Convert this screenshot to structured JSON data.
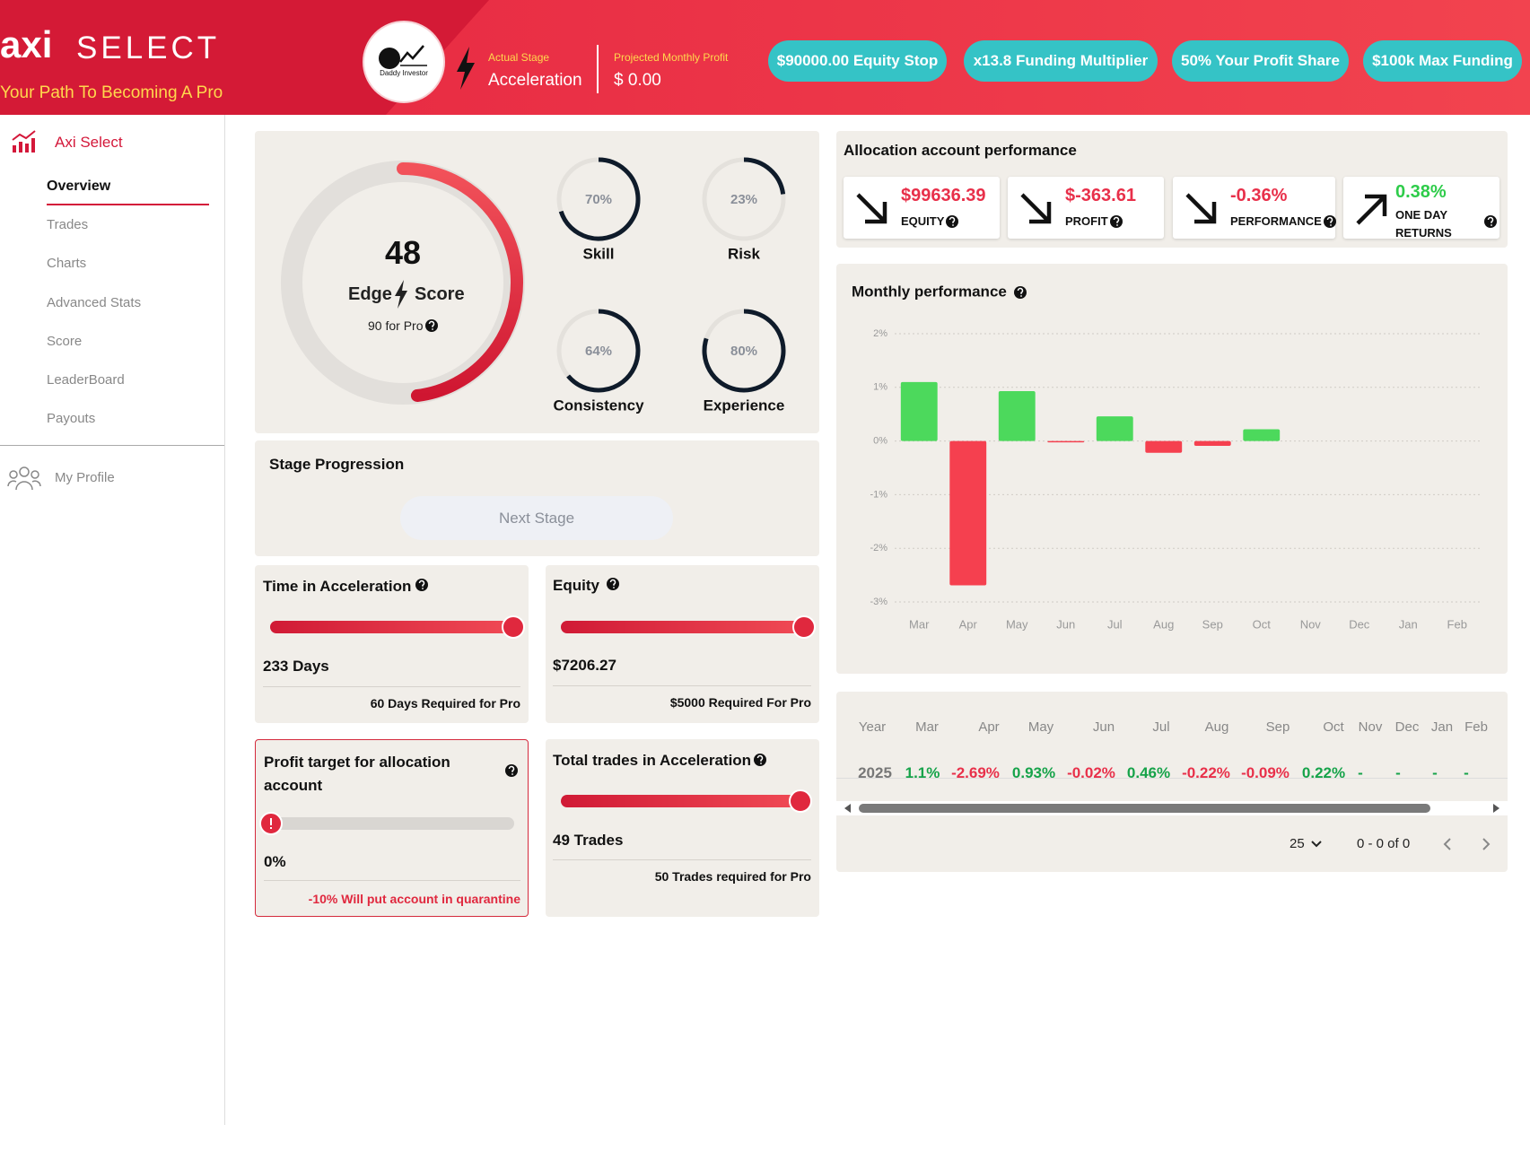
{
  "header": {
    "logo": "axi",
    "brand": "SELECT",
    "tagline": "Your Path To Becoming A Pro",
    "avatar_label": "Daddy Investor",
    "stage_label": "Actual Stage",
    "stage": "Acceleration",
    "profit_label": "Projected Monthly Profit",
    "profit": "$ 0.00",
    "pills": [
      "$90000.00 Equity Stop",
      "x13.8 Funding Multiplier",
      "50% Your Profit Share",
      "$100k Max Funding"
    ]
  },
  "sidebar": {
    "brand": "Axi Select",
    "nav": [
      "Overview",
      "Trades",
      "Charts",
      "Advanced Stats",
      "Score",
      "LeaderBoard",
      "Payouts"
    ],
    "profile": "My Profile"
  },
  "edge": {
    "score": 48,
    "lim": [
      0,
      100
    ],
    "word1": "Edge",
    "word2": "Score",
    "target": "90 for Pro"
  },
  "gauges": [
    {
      "name": "Skill",
      "value": 70,
      "value_label": "70%"
    },
    {
      "name": "Risk",
      "value": 23,
      "value_label": "23%"
    },
    {
      "name": "Consistency",
      "value": 64,
      "value_label": "64%"
    },
    {
      "name": "Experience",
      "value": 80,
      "value_label": "80%"
    }
  ],
  "stage_progression": {
    "title": "Stage Progression",
    "button": "Next Stage"
  },
  "cards": [
    {
      "title": "Time in Acceleration",
      "value": "233 Days",
      "note": "60 Days Required for Pro"
    },
    {
      "title": "Equity",
      "value": "$7206.27",
      "note": "$5000 Required For Pro"
    },
    {
      "title": "Profit target for allocation account",
      "value": "0%",
      "note": "-10% Will put account in quarantine"
    },
    {
      "title": "Total trades in Acceleration",
      "value": "49 Trades",
      "note": "50 Trades required for Pro"
    }
  ],
  "allocation": {
    "title": "Allocation account performance",
    "tiles": [
      {
        "value": "$99636.39",
        "label": "EQUITY"
      },
      {
        "value": "$-363.61",
        "label": "PROFIT"
      },
      {
        "value": "-0.36%",
        "label": "PERFORMANCE"
      },
      {
        "value": "0.38%",
        "label": "ONE DAY RETURNS"
      }
    ]
  },
  "chart_data": {
    "type": "bar",
    "title": "Monthly performance",
    "categories": [
      "Mar",
      "Apr",
      "May",
      "Jun",
      "Jul",
      "Aug",
      "Sep",
      "Oct",
      "Nov",
      "Dec",
      "Jan",
      "Feb"
    ],
    "values": [
      1.1,
      -2.69,
      0.93,
      -0.02,
      0.46,
      -0.22,
      -0.09,
      0.22,
      null,
      null,
      null,
      null
    ],
    "positive_color": "#4cd95c",
    "negative_color": "#f5404f",
    "ylim": [
      -3,
      2
    ],
    "yticks": [
      {
        "value": 2,
        "label": "2%"
      },
      {
        "value": 1,
        "label": "1%"
      },
      {
        "value": 0,
        "label": "0%"
      },
      {
        "value": -1,
        "label": "-1%"
      },
      {
        "value": -2,
        "label": "-2%"
      },
      {
        "value": -3,
        "label": "-3%"
      }
    ],
    "grid": true
  },
  "table": {
    "header": [
      "Year",
      "Mar",
      "Apr",
      "May",
      "Jun",
      "Jul",
      "Aug",
      "Sep",
      "Oct",
      "Nov",
      "Dec",
      "Jan",
      "Feb"
    ],
    "rows": [
      [
        "2025",
        "1.1%",
        "-2.69%",
        "0.93%",
        "-0.02%",
        "0.46%",
        "-0.22%",
        "-0.09%",
        "0.22%",
        "-",
        "-",
        "-",
        "-"
      ]
    ]
  },
  "pagination": {
    "page_size": "25",
    "range": "0 - 0 of 0"
  }
}
